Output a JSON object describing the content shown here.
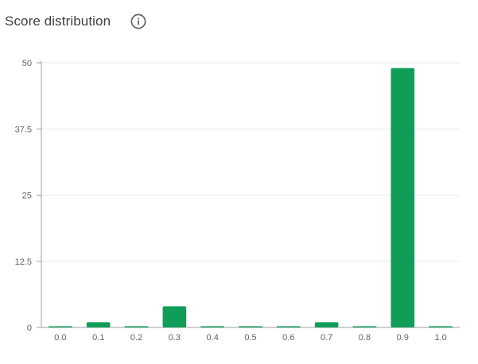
{
  "header": {
    "title": "Score distribution",
    "info_icon": "info-icon"
  },
  "colors": {
    "bar": "#0f9d58",
    "grid": "#e8eaed",
    "axis": "#9aa0a6",
    "tick_text": "#5f6368"
  },
  "chart_data": {
    "type": "bar",
    "categories": [
      "0.0",
      "0.1",
      "0.2",
      "0.3",
      "0.4",
      "0.5",
      "0.6",
      "0.7",
      "0.8",
      "0.9",
      "1.0"
    ],
    "values": [
      0,
      1,
      0,
      4,
      0,
      0,
      0,
      1,
      0,
      49,
      0
    ],
    "title": "Score distribution",
    "xlabel": "",
    "ylabel": "",
    "ylim": [
      0,
      50
    ],
    "yticks": [
      "0",
      "12.5",
      "25",
      "37.5",
      "50"
    ],
    "ytick_values": [
      0,
      12.5,
      25,
      37.5,
      50
    ],
    "grid": true,
    "legend": "none"
  }
}
